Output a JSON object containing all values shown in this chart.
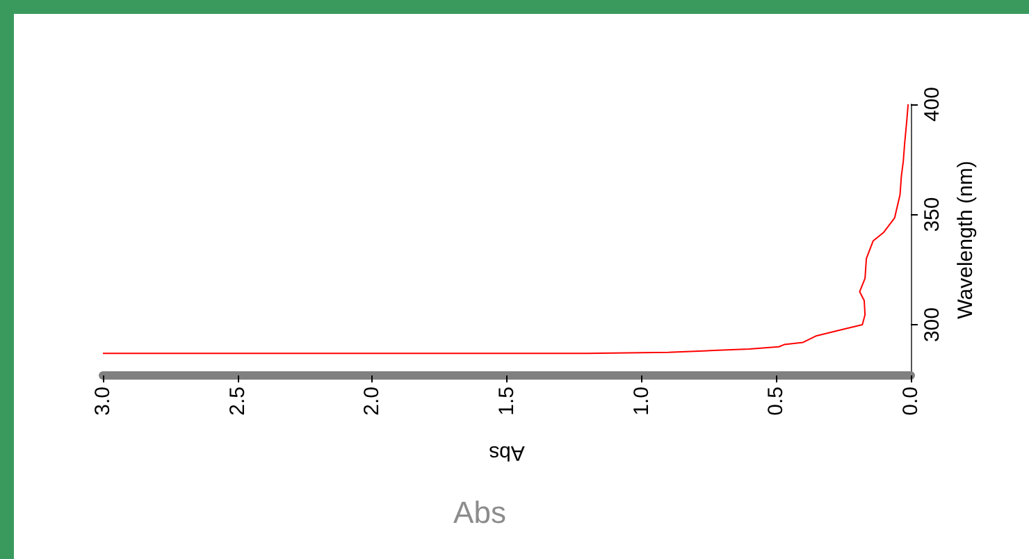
{
  "chart_data": {
    "type": "line",
    "xlabel": "Abs",
    "ylabel": "Wavelength (nm)",
    "annotations": [
      "Abs"
    ],
    "xlim": [
      3.0,
      0.0
    ],
    "ylim": [
      277,
      400
    ],
    "xticks": [
      {
        "value": 3,
        "label": "3.0"
      },
      {
        "value": 2.5,
        "label": "2.5"
      },
      {
        "value": 2,
        "label": "2.0"
      },
      {
        "value": 1.5,
        "label": "1.5"
      },
      {
        "value": 1,
        "label": "1.0"
      },
      {
        "value": 0.5,
        "label": "0.5"
      },
      {
        "value": 0,
        "label": "0.0"
      }
    ],
    "yticks": [
      300,
      350,
      400
    ],
    "grid": false,
    "marker": "none",
    "line_style": "solid",
    "series": [
      {
        "color": "#ff0000",
        "x": [
          3.0,
          2.0,
          1.2,
          0.9,
          0.7,
          0.6,
          0.49,
          0.47,
          0.4,
          0.35,
          0.25,
          0.18,
          0.17,
          0.173,
          0.19,
          0.17,
          0.165,
          0.14,
          0.1,
          0.06,
          0.04,
          0.035,
          0.028,
          0.023,
          0.015,
          0.01
        ],
        "values": [
          287,
          287,
          287,
          287.5,
          288.5,
          289,
          290,
          291,
          292,
          295,
          298,
          300,
          304.5,
          311,
          315,
          321,
          330,
          338,
          342,
          348.5,
          359,
          367.5,
          374,
          382,
          392.5,
          400
        ]
      }
    ]
  }
}
